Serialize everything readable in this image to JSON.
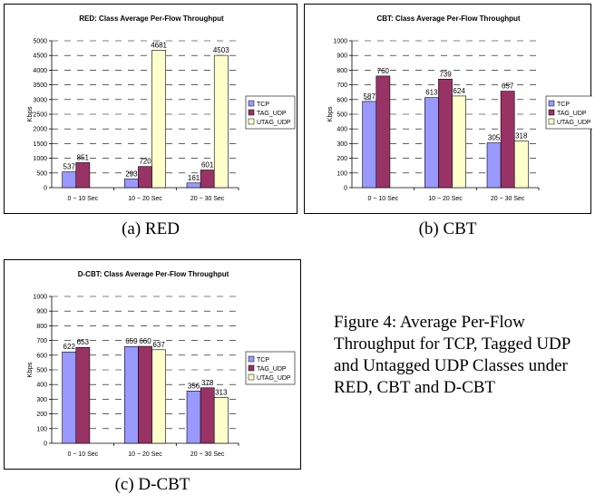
{
  "colors": {
    "TCP": "#9999ff",
    "TAG_UDP": "#993366",
    "UTAG_UDP": "#ffffcc"
  },
  "captions": {
    "a": "(a) RED",
    "b": "(b) CBT",
    "c": "(c) D-CBT"
  },
  "figure_caption": "Figure 4: Average Per-Flow Throughput for TCP, Tagged UDP and Untagged UDP Classes under RED, CBT and D-CBT",
  "chart_data": [
    {
      "type": "bar",
      "title": "RED: Class Average Per-Flow Throughput",
      "ylabel": "Kbps",
      "categories": [
        "0 ~ 10 Sec",
        "10 ~ 20 Sec",
        "20 ~ 30 Sec"
      ],
      "ylim": [
        0,
        5000
      ],
      "yticks": [
        0,
        500,
        1000,
        1500,
        2000,
        2500,
        3000,
        3500,
        4000,
        4500,
        5000
      ],
      "grid": true,
      "legend": "right",
      "series": [
        {
          "name": "TCP",
          "values": [
            537,
            293,
            161
          ]
        },
        {
          "name": "TAG_UDP",
          "values": [
            851,
            720,
            601
          ]
        },
        {
          "name": "UTAG_UDP",
          "values": [
            null,
            4681,
            4503
          ]
        }
      ]
    },
    {
      "type": "bar",
      "title": "CBT: Class Average Per-Flow Throughput",
      "ylabel": "Kbps",
      "categories": [
        "0 ~ 10 Sec",
        "10 ~ 20 Sec",
        "20 ~ 30 Sec"
      ],
      "ylim": [
        0,
        1000
      ],
      "yticks": [
        0,
        100,
        200,
        300,
        400,
        500,
        600,
        700,
        800,
        900,
        1000
      ],
      "grid": true,
      "legend": "right",
      "series": [
        {
          "name": "TCP",
          "values": [
            587,
            613,
            305
          ]
        },
        {
          "name": "TAG_UDP",
          "values": [
            760,
            739,
            657
          ]
        },
        {
          "name": "UTAG_UDP",
          "values": [
            null,
            624,
            318
          ]
        }
      ]
    },
    {
      "type": "bar",
      "title": "D-CBT: Class Average Per-Flow Throughput",
      "ylabel": "Kbps",
      "categories": [
        "0 ~ 10 Sec",
        "10 ~ 20 Sec",
        "20 ~ 30 Sec"
      ],
      "ylim": [
        0,
        1000
      ],
      "yticks": [
        0,
        100,
        200,
        300,
        400,
        500,
        600,
        700,
        800,
        900,
        1000
      ],
      "grid": true,
      "legend": "right",
      "series": [
        {
          "name": "TCP",
          "values": [
            622,
            659,
            356
          ]
        },
        {
          "name": "TAG_UDP",
          "values": [
            653,
            660,
            378
          ]
        },
        {
          "name": "UTAG_UDP",
          "values": [
            null,
            637,
            313
          ]
        }
      ]
    }
  ]
}
